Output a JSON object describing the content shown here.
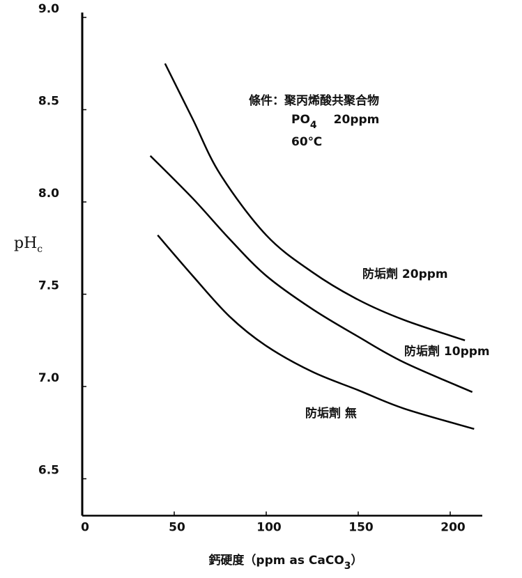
{
  "chart_data": {
    "type": "line",
    "x_label": [
      "鈣硬度（ppm as CaCO",
      "3",
      "）"
    ],
    "y_label": [
      "pH",
      "c"
    ],
    "annotations": [
      [
        "條件：聚丙烯酸共聚合物"
      ],
      [
        "PO",
        "4",
        "20ppm"
      ],
      [
        "60℃"
      ]
    ],
    "xlim": [
      0,
      215
    ],
    "ylim": [
      6.3,
      9.0
    ],
    "xticks": [
      0,
      50,
      100,
      150,
      200
    ],
    "yticks": [
      {
        "value": 9,
        "label": "9.0"
      },
      8.5,
      {
        "value": 8,
        "label": "8.0"
      },
      7.5,
      {
        "value": 7,
        "label": "7.0"
      },
      6.5
    ],
    "series": [
      {
        "name": "防垢劑 20ppm",
        "color": "#000000",
        "x": [
          45,
          60,
          75,
          100,
          125,
          150,
          175,
          208
        ],
        "values": [
          8.75,
          8.45,
          8.15,
          7.82,
          7.62,
          7.47,
          7.36,
          7.25
        ]
      },
      {
        "name": "防垢劑 10ppm",
        "color": "#000000",
        "x": [
          37,
          60,
          80,
          100,
          125,
          150,
          175,
          212
        ],
        "values": [
          8.25,
          8.02,
          7.8,
          7.6,
          7.42,
          7.27,
          7.13,
          6.97
        ]
      },
      {
        "name": "防垢劑 無",
        "color": "#000000",
        "x": [
          41,
          60,
          80,
          100,
          125,
          150,
          175,
          213
        ],
        "values": [
          7.82,
          7.6,
          7.38,
          7.22,
          7.08,
          6.98,
          6.88,
          6.77
        ]
      }
    ]
  }
}
